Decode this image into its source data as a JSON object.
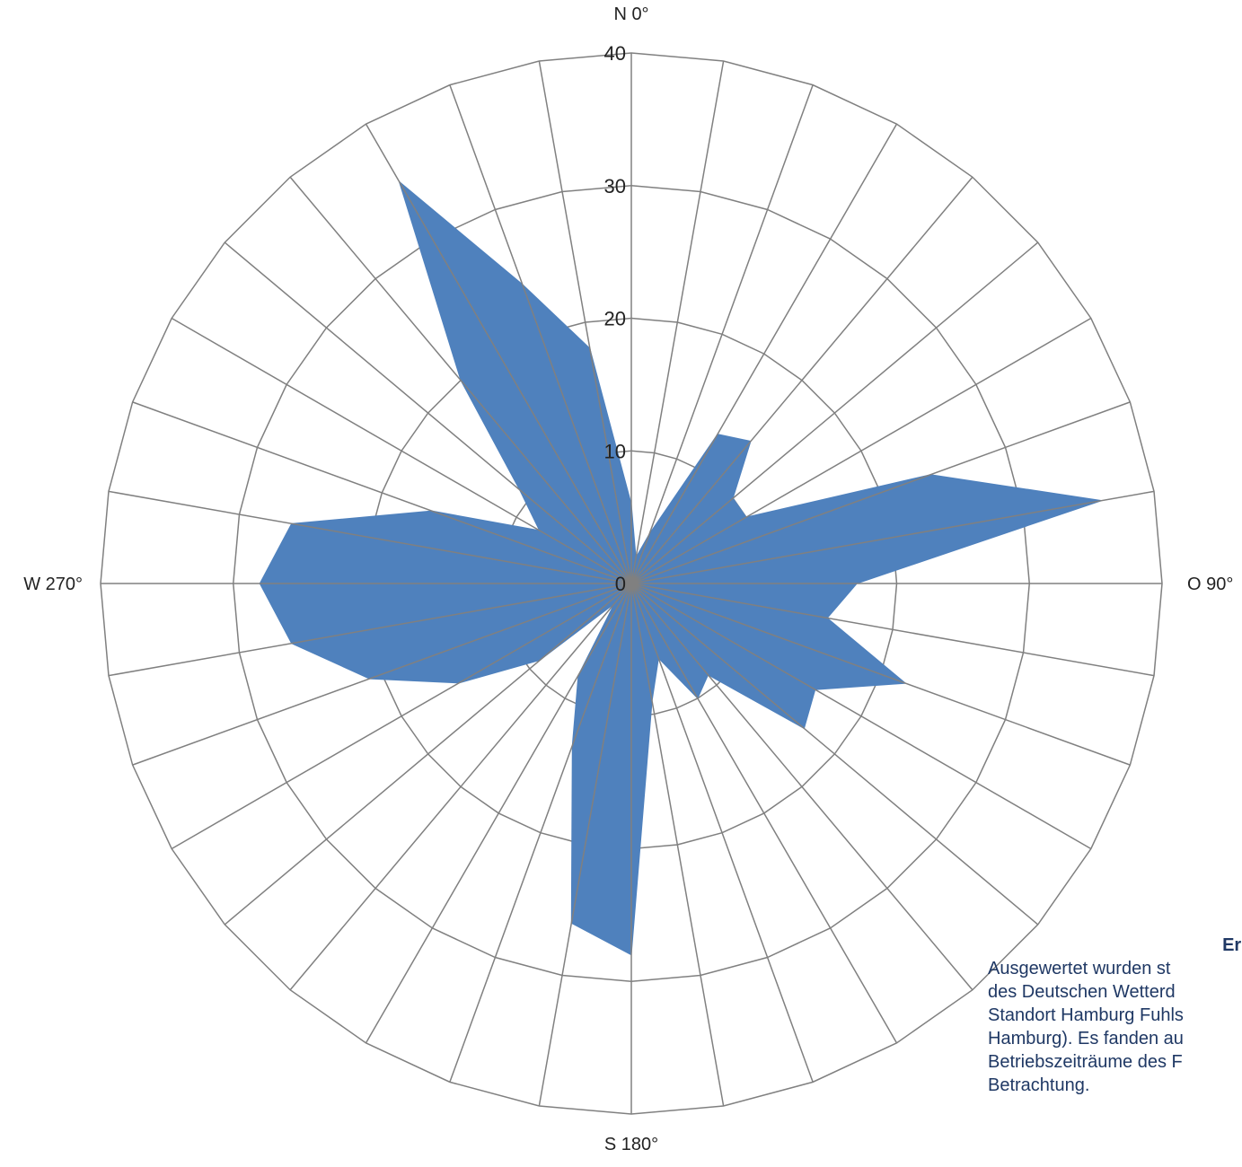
{
  "chart_data": {
    "type": "radar",
    "directions": [
      "N 0°",
      "O 90°",
      "S 180°",
      "W 270°"
    ],
    "r_max": 40,
    "r_ticks": [
      "0",
      "10",
      "20",
      "30",
      "40"
    ],
    "sector_count": 36,
    "series": [
      {
        "color": "#4f81bd",
        "values": [
          6,
          2,
          4,
          13,
          14,
          10,
          10,
          24,
          36,
          17,
          15,
          22,
          16,
          17,
          9,
          10,
          6,
          9,
          28,
          26,
          13,
          8,
          2,
          9,
          15,
          21,
          26,
          28,
          26,
          16,
          8,
          11,
          20,
          35,
          24,
          18
        ]
      }
    ],
    "grid_color": "#808080"
  },
  "note": {
    "title": "Erläute",
    "lines": [
      "Ausgewertet wurden st",
      "des Deutschen Wetterd",
      "Standort Hamburg Fuhls",
      "Hamburg). Es fanden au",
      "Betriebszeiträume des F",
      "Betrachtung."
    ]
  }
}
